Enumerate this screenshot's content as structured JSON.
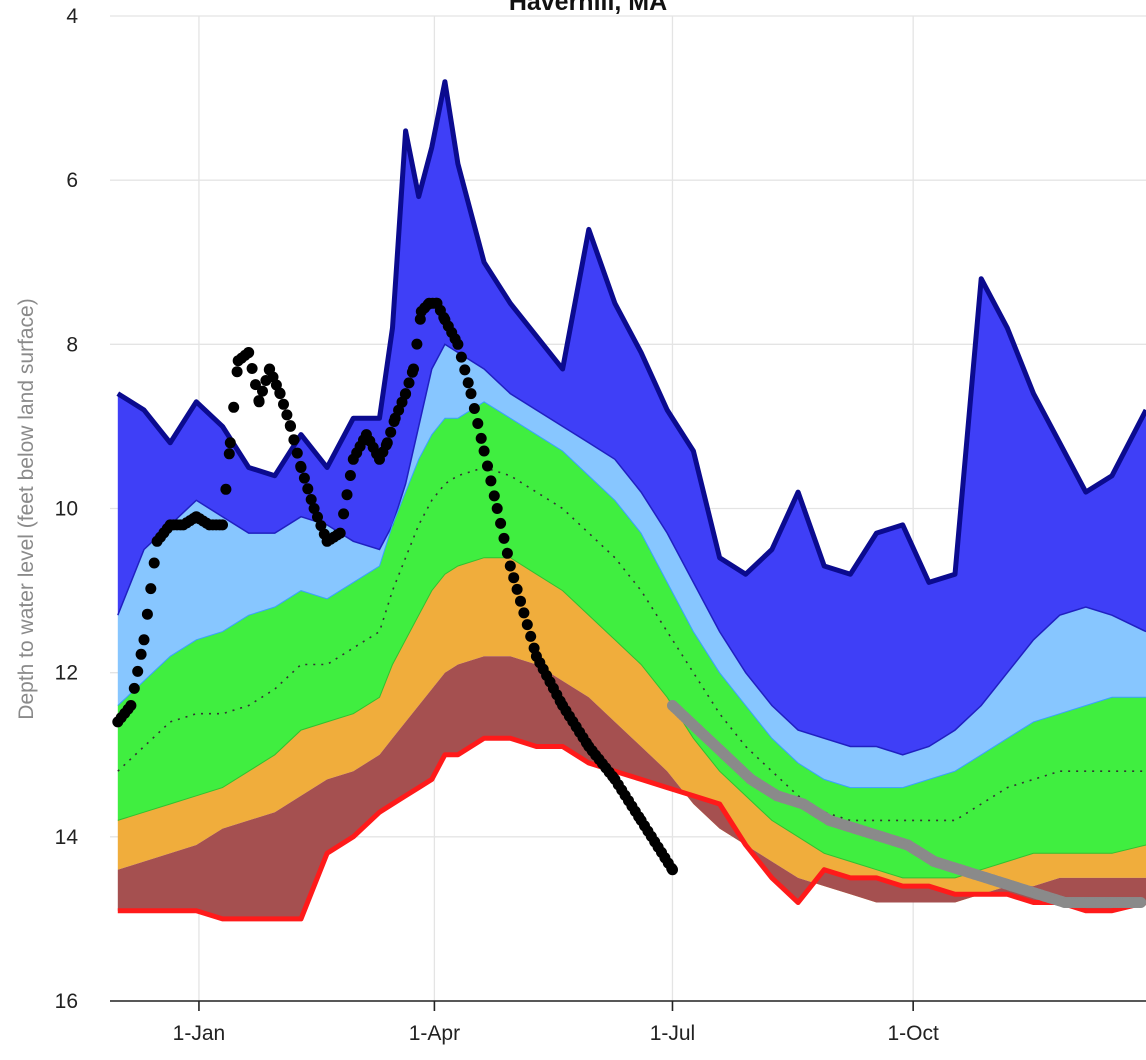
{
  "chart_data": {
    "type": "area",
    "title": "Haverhill, MA",
    "xlabel": "",
    "ylabel": "Depth to water level (feet below land surface)",
    "y_axis_inverted": true,
    "ylim": [
      4,
      16
    ],
    "y_ticks": [
      4,
      6,
      8,
      10,
      12,
      14,
      16
    ],
    "x_ticks": [
      {
        "day": 31,
        "label": "1-Jan"
      },
      {
        "day": 121,
        "label": "1-Apr"
      },
      {
        "day": 212,
        "label": "1-Jul"
      },
      {
        "day": 304,
        "label": "1-Oct"
      }
    ],
    "xlim": [
      -3,
      393
    ],
    "grid": true,
    "legend": "none",
    "colors": {
      "max_band": "#3f3ff7",
      "max_line": "#0b0b8f",
      "above_normal": "#87c6ff",
      "normal": "#40ee40",
      "below_normal": "#f0ad3c",
      "much_below": "#a55050",
      "min_line": "#ff1a1a",
      "median": "#333333",
      "observed": "#000000",
      "provisional": "#8a8a8a"
    },
    "x": [
      0,
      10,
      20,
      30,
      40,
      50,
      60,
      70,
      80,
      90,
      100,
      105,
      110,
      115,
      120,
      125,
      130,
      140,
      150,
      160,
      170,
      180,
      190,
      200,
      210,
      220,
      230,
      240,
      250,
      260,
      270,
      280,
      290,
      300,
      310,
      320,
      330,
      340,
      350,
      360,
      370,
      380,
      393
    ],
    "series": [
      {
        "key": "max",
        "values": [
          8.6,
          8.8,
          9.2,
          8.7,
          9.0,
          9.5,
          9.6,
          9.1,
          9.5,
          8.9,
          8.9,
          7.8,
          5.4,
          6.2,
          5.6,
          4.8,
          5.8,
          7.0,
          7.5,
          7.9,
          8.3,
          6.6,
          7.5,
          8.1,
          8.8,
          9.3,
          10.6,
          10.8,
          10.5,
          9.8,
          10.7,
          10.8,
          10.3,
          10.2,
          10.9,
          10.8,
          7.2,
          7.8,
          8.6,
          9.2,
          9.8,
          9.6,
          8.8
        ]
      },
      {
        "key": "p90",
        "values": [
          11.3,
          10.5,
          10.2,
          9.9,
          10.1,
          10.3,
          10.3,
          10.1,
          10.2,
          10.4,
          10.5,
          10.2,
          9.7,
          9.0,
          8.3,
          8.0,
          8.1,
          8.3,
          8.6,
          8.8,
          9.0,
          9.2,
          9.4,
          9.8,
          10.3,
          10.9,
          11.5,
          12.0,
          12.4,
          12.7,
          12.8,
          12.9,
          12.9,
          13.0,
          12.9,
          12.7,
          12.4,
          12.0,
          11.6,
          11.3,
          11.2,
          11.3,
          11.5
        ]
      },
      {
        "key": "p75",
        "values": [
          12.4,
          12.1,
          11.8,
          11.6,
          11.5,
          11.3,
          11.2,
          11.0,
          11.1,
          10.9,
          10.7,
          10.2,
          9.8,
          9.4,
          9.1,
          8.9,
          8.9,
          8.7,
          8.9,
          9.1,
          9.3,
          9.6,
          9.9,
          10.3,
          10.9,
          11.5,
          12.0,
          12.4,
          12.8,
          13.1,
          13.3,
          13.4,
          13.4,
          13.4,
          13.3,
          13.2,
          13.0,
          12.8,
          12.6,
          12.5,
          12.4,
          12.3,
          12.3
        ]
      },
      {
        "key": "p50",
        "values": [
          13.2,
          12.9,
          12.6,
          12.5,
          12.5,
          12.4,
          12.2,
          11.9,
          11.9,
          11.7,
          11.5,
          11.0,
          10.6,
          10.2,
          9.9,
          9.7,
          9.6,
          9.5,
          9.6,
          9.8,
          10.0,
          10.3,
          10.6,
          11.0,
          11.5,
          12.0,
          12.5,
          12.9,
          13.2,
          13.5,
          13.7,
          13.8,
          13.8,
          13.8,
          13.8,
          13.8,
          13.6,
          13.4,
          13.3,
          13.2,
          13.2,
          13.2,
          13.2
        ]
      },
      {
        "key": "p25",
        "values": [
          13.8,
          13.7,
          13.6,
          13.5,
          13.4,
          13.2,
          13.0,
          12.7,
          12.6,
          12.5,
          12.3,
          11.9,
          11.6,
          11.3,
          11.0,
          10.8,
          10.7,
          10.6,
          10.6,
          10.8,
          11.0,
          11.3,
          11.6,
          11.9,
          12.3,
          12.8,
          13.2,
          13.5,
          13.8,
          14.0,
          14.2,
          14.3,
          14.4,
          14.5,
          14.5,
          14.5,
          14.4,
          14.3,
          14.2,
          14.2,
          14.2,
          14.2,
          14.1
        ]
      },
      {
        "key": "p10",
        "values": [
          14.4,
          14.3,
          14.2,
          14.1,
          13.9,
          13.8,
          13.7,
          13.5,
          13.3,
          13.2,
          13.0,
          12.8,
          12.6,
          12.4,
          12.2,
          12.0,
          11.9,
          11.8,
          11.8,
          11.9,
          12.1,
          12.3,
          12.6,
          12.9,
          13.2,
          13.6,
          13.9,
          14.1,
          14.3,
          14.5,
          14.6,
          14.7,
          14.8,
          14.8,
          14.8,
          14.8,
          14.7,
          14.6,
          14.6,
          14.5,
          14.5,
          14.5,
          14.5
        ]
      },
      {
        "key": "min",
        "values": [
          14.9,
          14.9,
          14.9,
          14.9,
          15.0,
          15.0,
          15.0,
          15.0,
          14.2,
          14.0,
          13.7,
          13.6,
          13.5,
          13.4,
          13.3,
          13.0,
          13.0,
          12.8,
          12.8,
          12.9,
          12.9,
          13.1,
          13.2,
          13.3,
          13.4,
          13.5,
          13.6,
          14.1,
          14.5,
          14.8,
          14.4,
          14.5,
          14.5,
          14.6,
          14.6,
          14.7,
          14.7,
          14.7,
          14.8,
          14.8,
          14.9,
          14.9,
          14.8
        ]
      }
    ],
    "observed": {
      "x": [
        0,
        5,
        10,
        15,
        20,
        25,
        30,
        35,
        40,
        43,
        46,
        50,
        54,
        58,
        62,
        66,
        70,
        75,
        80,
        85,
        90,
        95,
        100,
        103,
        106,
        110,
        113,
        116,
        119,
        122,
        125,
        130,
        135,
        140,
        145,
        150,
        160,
        170,
        180,
        190,
        200,
        212
      ],
      "y": [
        12.6,
        12.4,
        11.6,
        10.4,
        10.2,
        10.2,
        10.1,
        10.2,
        10.2,
        9.2,
        8.2,
        8.1,
        8.7,
        8.3,
        8.6,
        9.0,
        9.5,
        10.0,
        10.4,
        10.3,
        9.4,
        9.1,
        9.4,
        9.2,
        8.9,
        8.6,
        8.3,
        7.6,
        7.5,
        7.5,
        7.7,
        8.0,
        8.6,
        9.3,
        10.0,
        10.7,
        11.8,
        12.4,
        12.9,
        13.3,
        13.8,
        14.4
      ]
    },
    "provisional": {
      "x": [
        212,
        222,
        232,
        242,
        252,
        262,
        272,
        282,
        292,
        302,
        312,
        322,
        332,
        342,
        352,
        362,
        370,
        380,
        391
      ],
      "y": [
        12.4,
        12.7,
        13.0,
        13.3,
        13.5,
        13.6,
        13.8,
        13.9,
        14.0,
        14.1,
        14.3,
        14.4,
        14.5,
        14.6,
        14.7,
        14.8,
        14.8,
        14.8,
        14.8
      ]
    }
  }
}
